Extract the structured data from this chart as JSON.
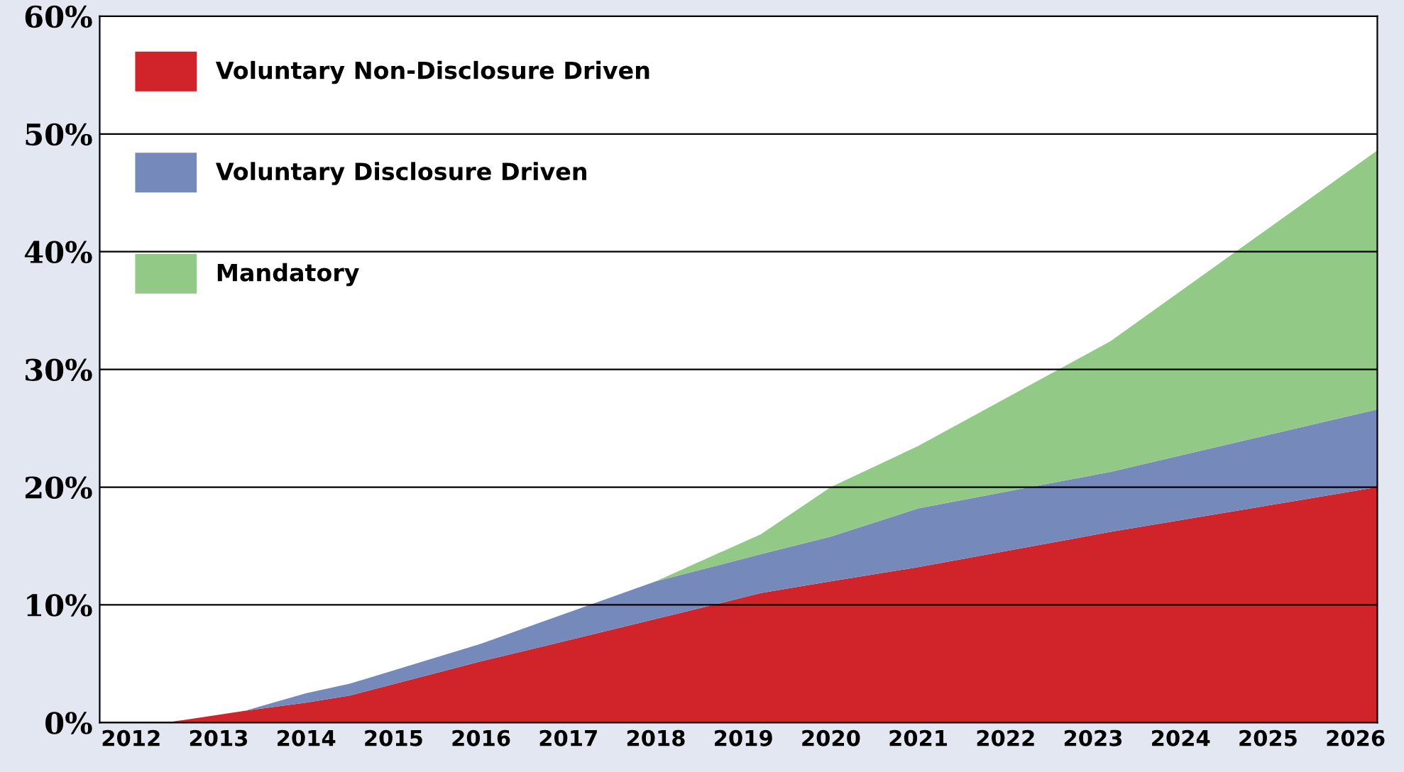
{
  "chart_data": {
    "type": "area",
    "stacked": true,
    "x": [
      2011.64,
      2012.4,
      2013.3,
      2014,
      2014.5,
      2016,
      2018,
      2019.2,
      2020,
      2021,
      2023.2,
      2026.25
    ],
    "series": [
      {
        "name": "Voluntary Non-Disclosure Driven",
        "color": "#d0232a",
        "values": [
          0,
          0,
          1,
          1.7,
          2.3,
          5.2,
          8.8,
          11,
          12,
          13.2,
          16.2,
          20
        ]
      },
      {
        "name": "Voluntary Disclosure Driven",
        "color": "#7689bb",
        "values": [
          0,
          0,
          0,
          0.8,
          1.0,
          1.5,
          3.2,
          3.3,
          3.8,
          5.0,
          5.1,
          6.6
        ]
      },
      {
        "name": "Mandatory",
        "color": "#92c987",
        "values": [
          0,
          0,
          0,
          0,
          0,
          0,
          0,
          1.7,
          4.2,
          5.3,
          11.1,
          22.0
        ]
      }
    ],
    "xlim": [
      2011.64,
      2026.25
    ],
    "xticks": [
      2012,
      2013,
      2014,
      2015,
      2016,
      2017,
      2018,
      2019,
      2020,
      2021,
      2022,
      2023,
      2024,
      2025,
      2026
    ],
    "ylim": [
      0,
      60
    ],
    "yticks": [
      {
        "value": 0,
        "label": "0%"
      },
      {
        "value": 10,
        "label": "10%"
      },
      {
        "value": 20,
        "label": "20%"
      },
      {
        "value": 30,
        "label": "30%"
      },
      {
        "value": 40,
        "label": "40%"
      },
      {
        "value": 50,
        "label": "50%"
      },
      {
        "value": 60,
        "label": "60%"
      }
    ],
    "grid": "y",
    "legend": "top left"
  }
}
